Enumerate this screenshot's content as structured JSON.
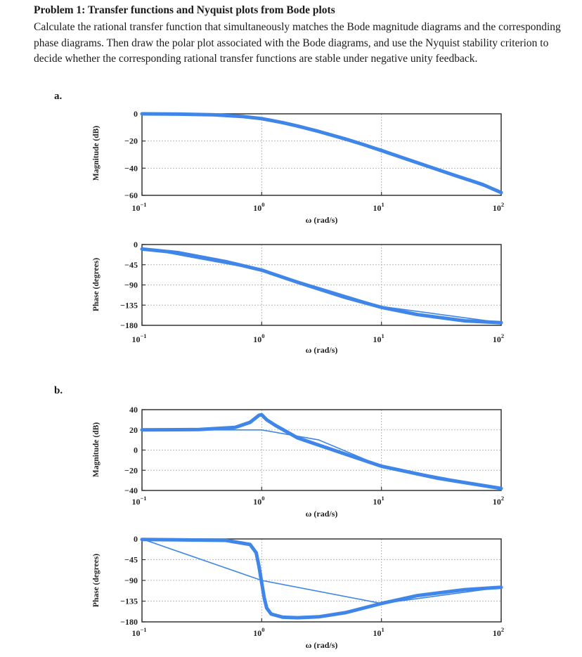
{
  "problem": {
    "title": "Problem 1: Transfer functions and Nyquist plots from Bode plots",
    "description": "Calculate the rational transfer function that simultaneously matches the Bode magnitude diagrams and the corresponding phase diagrams. Then draw the polar plot associated with the Bode diagrams, and use the Nyquist stability criterion to decide whether the corresponding rational transfer functions are stable under negative unity feedback."
  },
  "parts": [
    {
      "label": "a."
    },
    {
      "label": "b."
    }
  ],
  "axes_common": {
    "xlabel": "ω (rad/s)",
    "x_tick_base": "10",
    "x_tick_exponents": [
      "−1",
      "0",
      "1",
      "2"
    ]
  },
  "chart_data": [
    {
      "part": "a.",
      "type": "line",
      "ylabel": "Magnitude (dB)",
      "xlabel": "ω (rad/s)",
      "xscale": "log",
      "xlim": [
        0.1,
        100
      ],
      "ylim": [
        -60,
        0
      ],
      "yticks": [
        "0",
        "−20",
        "−40",
        "−60"
      ],
      "ytick_values": [
        0,
        -20,
        -40,
        -60
      ],
      "grid": true,
      "color": "#3f86e8",
      "series": [
        {
          "x": [
            0.1,
            0.2,
            0.4,
            0.7,
            1,
            1.5,
            2,
            3,
            5,
            7,
            10,
            20,
            40,
            70,
            100
          ],
          "y": [
            0,
            -0.2,
            -0.7,
            -2,
            -3.5,
            -6.5,
            -9,
            -13,
            -18.5,
            -22.5,
            -27,
            -36,
            -45,
            -52,
            -58
          ]
        },
        {
          "x": [
            0.1,
            0.5,
            1,
            3,
            10,
            100
          ],
          "y": [
            0,
            -1,
            -3.5,
            -13,
            -26,
            -58
          ]
        }
      ]
    },
    {
      "part": "a.",
      "type": "line",
      "ylabel": "Phase (degrees)",
      "xlabel": "ω (rad/s)",
      "xscale": "log",
      "xlim": [
        0.1,
        100
      ],
      "ylim": [
        -180,
        0
      ],
      "yticks": [
        "0",
        "−45",
        "−90",
        "−135",
        "−180"
      ],
      "ytick_values": [
        0,
        -45,
        -90,
        -135,
        -180
      ],
      "grid": true,
      "color": "#3f86e8",
      "series": [
        {
          "x": [
            0.1,
            0.2,
            0.5,
            1,
            2,
            5,
            10,
            20,
            50,
            100
          ],
          "y": [
            -10,
            -18,
            -38,
            -57,
            -84,
            -118,
            -140,
            -156,
            -170,
            -174
          ]
        },
        {
          "x": [
            0.1,
            1,
            10,
            100
          ],
          "y": [
            -8,
            -57,
            -138,
            -174
          ]
        }
      ]
    },
    {
      "part": "b.",
      "type": "line",
      "ylabel": "Magnitude (dB)",
      "xlabel": "ω (rad/s)",
      "xscale": "log",
      "xlim": [
        0.1,
        100
      ],
      "ylim": [
        -40,
        40
      ],
      "yticks": [
        "40",
        "20",
        "0",
        "−20",
        "−40"
      ],
      "ytick_values": [
        40,
        20,
        0,
        -20,
        -40
      ],
      "grid": true,
      "color": "#3f86e8",
      "series": [
        {
          "x": [
            0.1,
            0.3,
            0.6,
            0.8,
            0.95,
            1,
            1.1,
            1.3,
            2,
            5,
            10,
            30,
            100
          ],
          "y": [
            20,
            20.3,
            22.5,
            27.5,
            34.5,
            35,
            30,
            24.5,
            12,
            -4,
            -16,
            -28,
            -38
          ]
        },
        {
          "x": [
            0.1,
            1,
            3,
            10,
            100
          ],
          "y": [
            20,
            20,
            10,
            -16,
            -38
          ]
        }
      ]
    },
    {
      "part": "b.",
      "type": "line",
      "ylabel": "Phase (degrees)",
      "xlabel": "ω (rad/s)",
      "xscale": "log",
      "xlim": [
        0.1,
        100
      ],
      "ylim": [
        -180,
        0
      ],
      "yticks": [
        "0",
        "−45",
        "−90",
        "−135",
        "−180"
      ],
      "ytick_values": [
        0,
        -45,
        -90,
        -135,
        -180
      ],
      "grid": true,
      "color": "#3f86e8",
      "series": [
        {
          "x": [
            0.1,
            0.5,
            0.8,
            0.9,
            0.95,
            1,
            1.05,
            1.1,
            1.2,
            1.5,
            2,
            3,
            5,
            10,
            20,
            50,
            100
          ],
          "y": [
            -1,
            -3,
            -12,
            -30,
            -60,
            -95,
            -128,
            -150,
            -163,
            -170,
            -171,
            -169,
            -160,
            -140,
            -123,
            -110,
            -105
          ]
        },
        {
          "x": [
            0.1,
            1,
            10,
            100
          ],
          "y": [
            0,
            -90,
            -140,
            -105
          ]
        }
      ]
    }
  ]
}
